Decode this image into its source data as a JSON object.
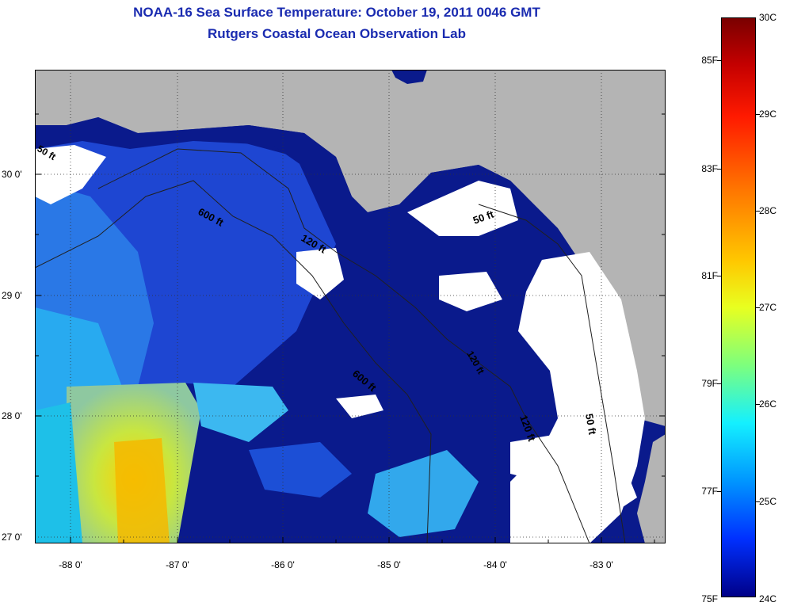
{
  "title_line1": "NOAA-16 Sea Surface Temperature:  October 19, 2011 0046 GMT",
  "title_line2": "Rutgers Coastal Ocean Observation Lab",
  "longitude_ticks": [
    "-88 0'",
    "-87 0'",
    "-86 0'",
    "-85 0'",
    "-84 0'",
    "-83 0'"
  ],
  "latitude_ticks": [
    "30 0'",
    "29 0'",
    "28 0'",
    "27 0'"
  ],
  "contour_labels": [
    "600 ft",
    "120 ft",
    "50 ft",
    "600 ft",
    "120 ft",
    "50 ft",
    "50 ft",
    "120 ft"
  ],
  "colorbar": {
    "fahrenheit_ticks": [
      "85F",
      "83F",
      "81F",
      "79F",
      "77F",
      "75F"
    ],
    "celsius_ticks": [
      "30C",
      "29C",
      "28C",
      "27C",
      "26C",
      "25C",
      "24C"
    ]
  },
  "colors": {
    "land": "#b4b4b4",
    "cloud": "#ffffff",
    "deep_blue": "#0a1a8c",
    "title": "#1a2bb0"
  }
}
